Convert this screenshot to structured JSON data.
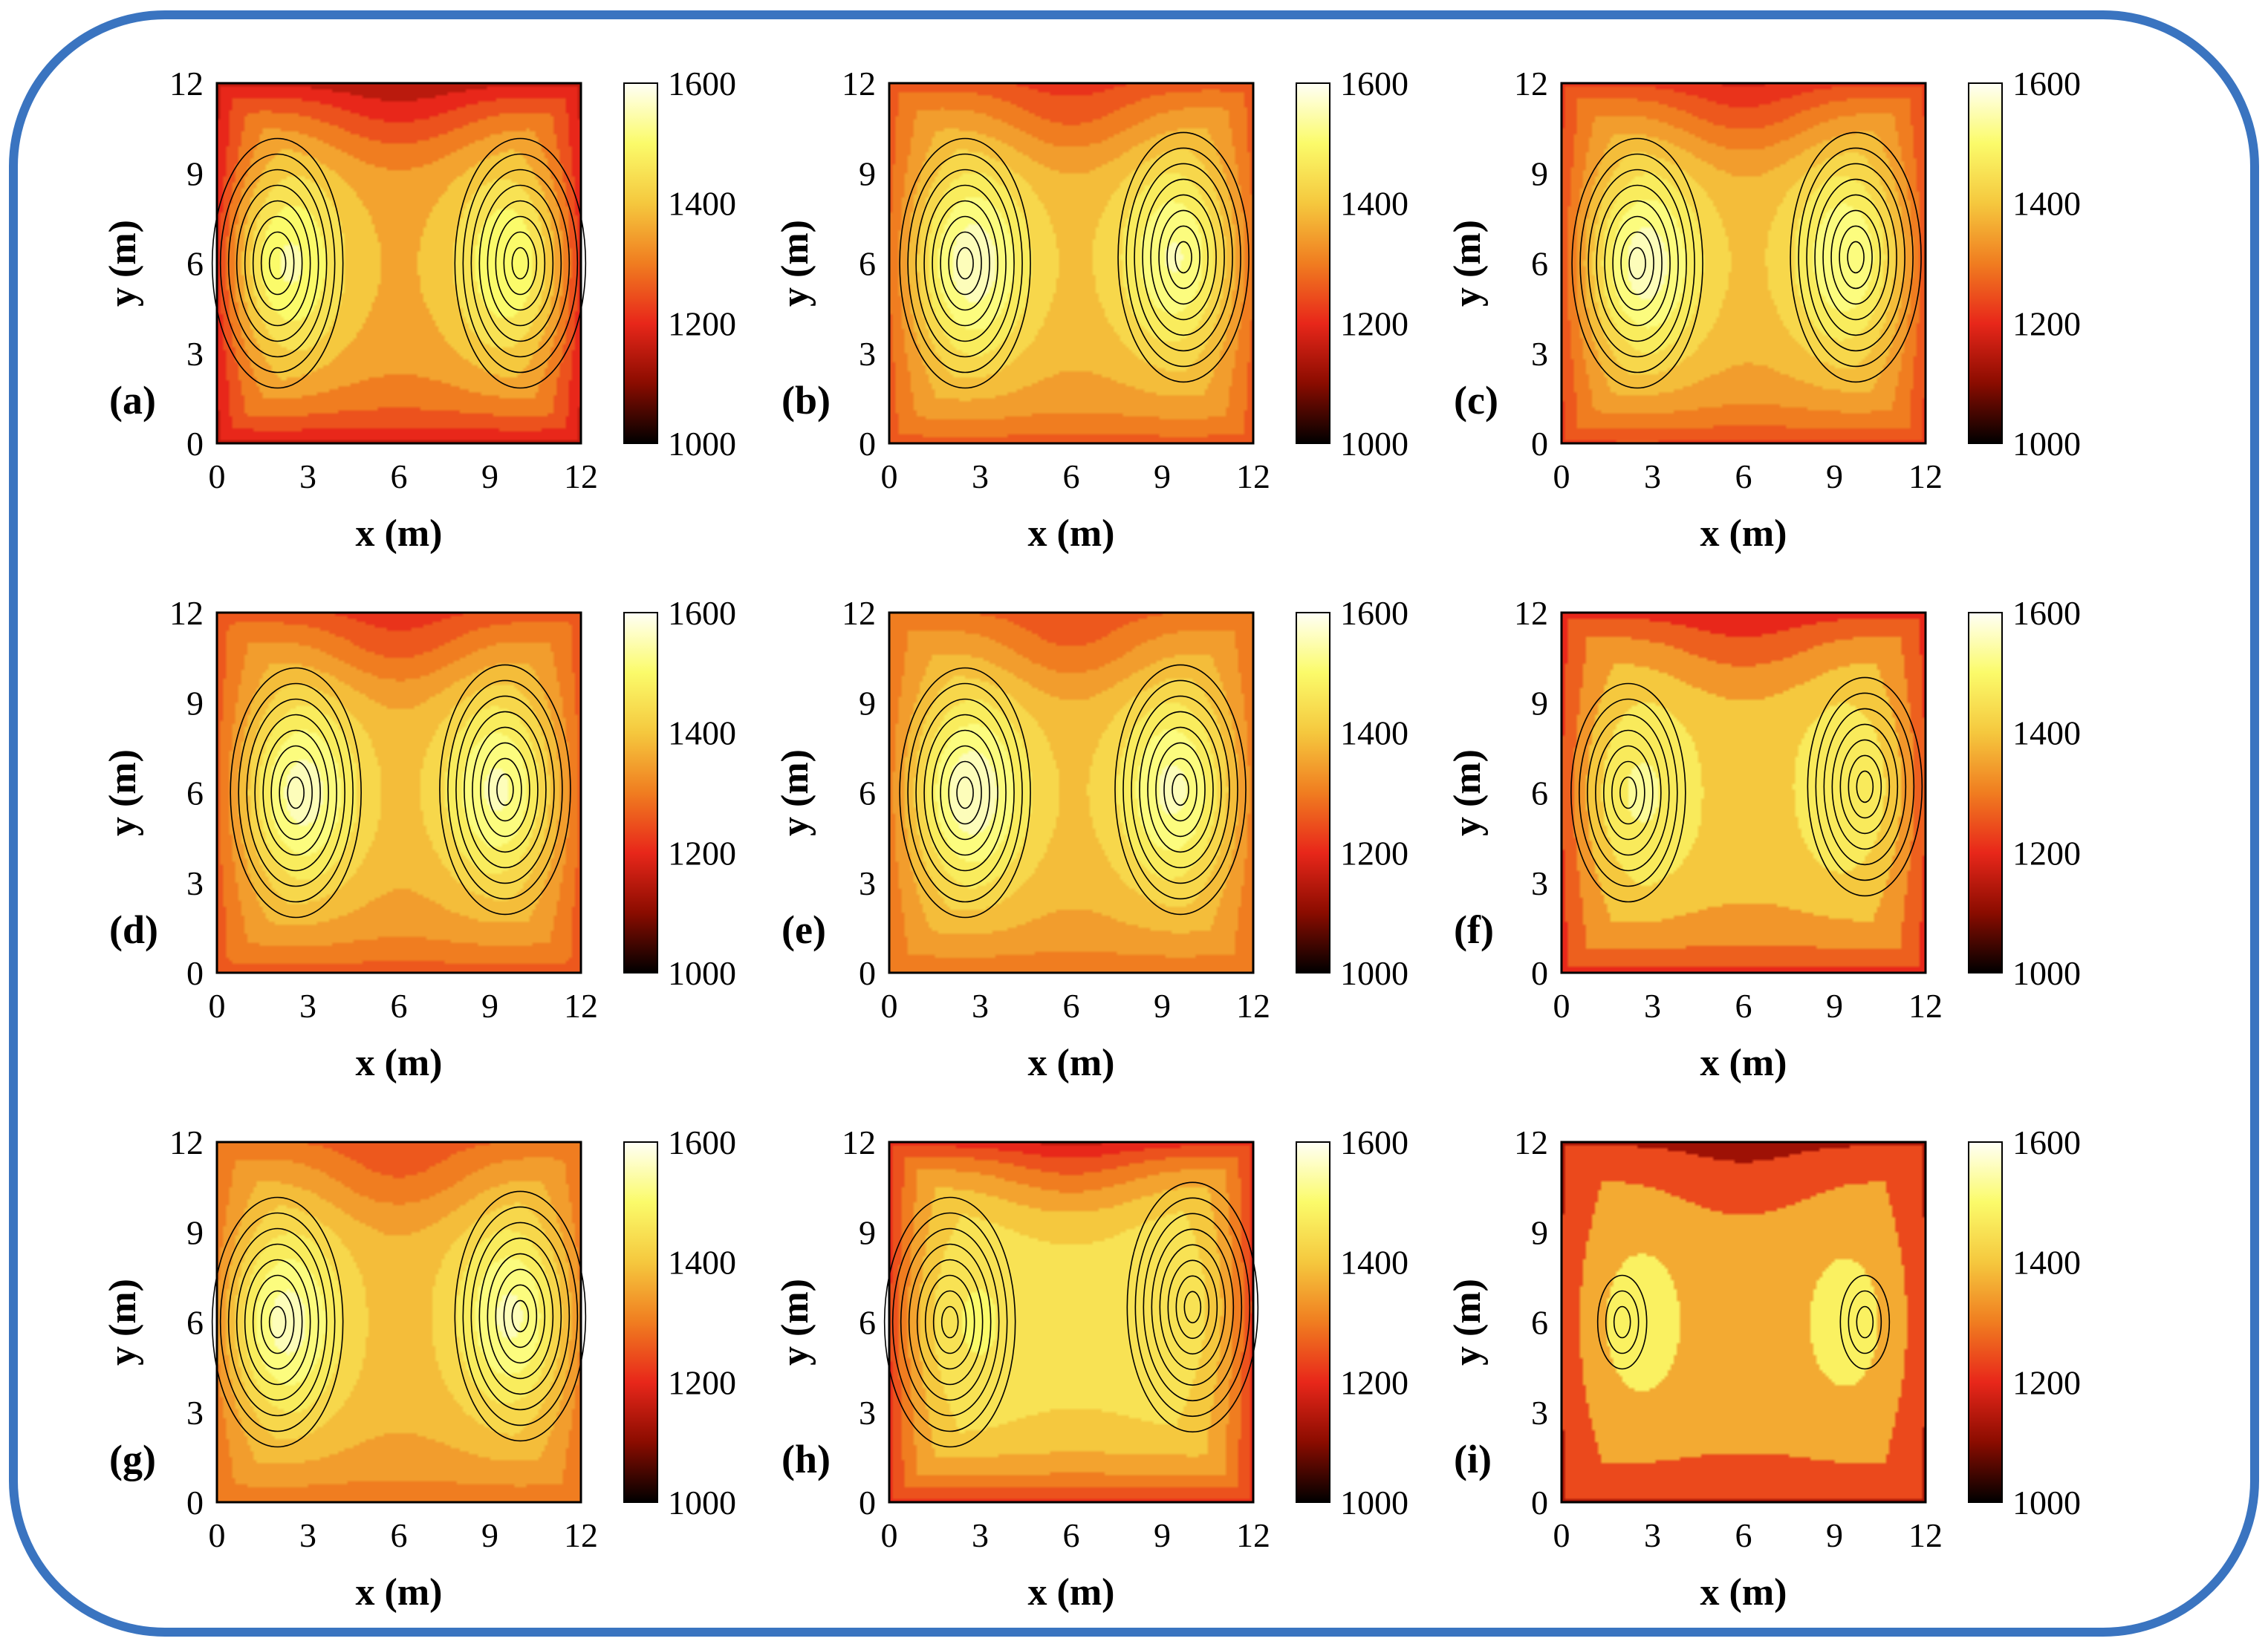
{
  "figure": {
    "frame_color": "#3a74c0",
    "colormap": [
      "#000000",
      "#8b0c00",
      "#e8271a",
      "#f07d20",
      "#f5c83e",
      "#fbfb6a",
      "#fffff6"
    ],
    "contour_line_color": "#000000"
  },
  "chart_data": [
    {
      "panel_label": "(a)",
      "type": "heatmap",
      "xlabel": "x (m)",
      "ylabel": "y (m)",
      "xlim": [
        0,
        12
      ],
      "ylim": [
        0,
        12
      ],
      "xticks": [
        "0",
        "3",
        "6",
        "9",
        "12"
      ],
      "yticks": [
        "0",
        "3",
        "6",
        "9",
        "12"
      ],
      "colorbar": {
        "min": 1000,
        "max": 1600,
        "ticks": [
          "1600",
          "1400",
          "1200",
          "1000"
        ]
      },
      "field": {
        "base": 1360,
        "hotspots": [
          {
            "x": 2,
            "y": 6,
            "peak": 1600
          },
          {
            "x": 10,
            "y": 6,
            "peak": 1590
          }
        ],
        "hot_edge_value": 1000,
        "contour_levels": 12
      }
    },
    {
      "panel_label": "(b)",
      "type": "heatmap",
      "xlabel": "x (m)",
      "ylabel": "y (m)",
      "xlim": [
        0,
        12
      ],
      "ylim": [
        0,
        12
      ],
      "xticks": [
        "0",
        "3",
        "6",
        "9",
        "12"
      ],
      "yticks": [
        "0",
        "3",
        "6",
        "9",
        "12"
      ],
      "colorbar": {
        "min": 1000,
        "max": 1600,
        "ticks": [
          "1600",
          "1400",
          "1200",
          "1000"
        ]
      },
      "field": {
        "base": 1380,
        "hotspots": [
          {
            "x": 2.5,
            "y": 6,
            "peak": 1600
          },
          {
            "x": 9.7,
            "y": 6.2,
            "peak": 1580
          }
        ],
        "hot_edge_value": 1150,
        "contour_levels": 14
      }
    },
    {
      "panel_label": "(c)",
      "type": "heatmap",
      "xlabel": "x (m)",
      "ylabel": "y (m)",
      "xlim": [
        0,
        12
      ],
      "ylim": [
        0,
        12
      ],
      "xticks": [
        "0",
        "3",
        "6",
        "9",
        "12"
      ],
      "yticks": [
        "0",
        "3",
        "6",
        "9",
        "12"
      ],
      "colorbar": {
        "min": 1000,
        "max": 1600,
        "ticks": [
          "1600",
          "1400",
          "1200",
          "1000"
        ]
      },
      "field": {
        "base": 1380,
        "hotspots": [
          {
            "x": 2.5,
            "y": 6,
            "peak": 1600
          },
          {
            "x": 9.7,
            "y": 6.2,
            "peak": 1580
          }
        ],
        "hot_edge_value": 1100,
        "contour_levels": 14
      }
    },
    {
      "panel_label": "(d)",
      "type": "heatmap",
      "xlabel": "x (m)",
      "ylabel": "y (m)",
      "xlim": [
        0,
        12
      ],
      "ylim": [
        0,
        12
      ],
      "xticks": [
        "0",
        "3",
        "6",
        "9",
        "12"
      ],
      "yticks": [
        "0",
        "3",
        "6",
        "9",
        "12"
      ],
      "colorbar": {
        "min": 1000,
        "max": 1600,
        "ticks": [
          "1600",
          "1400",
          "1200",
          "1000"
        ]
      },
      "field": {
        "base": 1370,
        "hotspots": [
          {
            "x": 2.6,
            "y": 6,
            "peak": 1590
          },
          {
            "x": 9.5,
            "y": 6.1,
            "peak": 1580
          }
        ],
        "hot_edge_value": 1150,
        "contour_levels": 14
      }
    },
    {
      "panel_label": "(e)",
      "type": "heatmap",
      "xlabel": "x (m)",
      "ylabel": "y (m)",
      "xlim": [
        0,
        12
      ],
      "ylim": [
        0,
        12
      ],
      "xticks": [
        "0",
        "3",
        "6",
        "9",
        "12"
      ],
      "yticks": [
        "0",
        "3",
        "6",
        "9",
        "12"
      ],
      "colorbar": {
        "min": 1000,
        "max": 1600,
        "ticks": [
          "1600",
          "1400",
          "1200",
          "1000"
        ]
      },
      "field": {
        "base": 1380,
        "hotspots": [
          {
            "x": 2.5,
            "y": 6,
            "peak": 1600
          },
          {
            "x": 9.6,
            "y": 6.1,
            "peak": 1580
          }
        ],
        "hot_edge_value": 1200,
        "contour_levels": 14
      }
    },
    {
      "panel_label": "(f)",
      "type": "heatmap",
      "xlabel": "x (m)",
      "ylabel": "y (m)",
      "xlim": [
        0,
        12
      ],
      "ylim": [
        0,
        12
      ],
      "xticks": [
        "0",
        "3",
        "6",
        "9",
        "12"
      ],
      "yticks": [
        "0",
        "3",
        "6",
        "9",
        "12"
      ],
      "colorbar": {
        "min": 1000,
        "max": 1600,
        "ticks": [
          "1600",
          "1400",
          "1200",
          "1000"
        ]
      },
      "field": {
        "base": 1400,
        "hotspots": [
          {
            "x": 2.2,
            "y": 6,
            "peak": 1560
          },
          {
            "x": 10,
            "y": 6.2,
            "peak": 1550
          }
        ],
        "hot_edge_value": 1050,
        "contour_levels": 9
      }
    },
    {
      "panel_label": "(g)",
      "type": "heatmap",
      "xlabel": "x (m)",
      "ylabel": "y (m)",
      "xlim": [
        0,
        12
      ],
      "ylim": [
        0,
        12
      ],
      "xticks": [
        "0",
        "3",
        "6",
        "9",
        "12"
      ],
      "yticks": [
        "0",
        "3",
        "6",
        "9",
        "12"
      ],
      "colorbar": {
        "min": 1000,
        "max": 1600,
        "ticks": [
          "1600",
          "1400",
          "1200",
          "1000"
        ]
      },
      "field": {
        "base": 1380,
        "hotspots": [
          {
            "x": 2,
            "y": 6,
            "peak": 1600
          },
          {
            "x": 10,
            "y": 6.2,
            "peak": 1590
          }
        ],
        "hot_edge_value": 1200,
        "contour_levels": 14
      }
    },
    {
      "panel_label": "(h)",
      "type": "heatmap",
      "xlabel": "x (m)",
      "ylabel": "y (m)",
      "xlim": [
        0,
        12
      ],
      "ylim": [
        0,
        12
      ],
      "xticks": [
        "0",
        "3",
        "6",
        "9",
        "12"
      ],
      "yticks": [
        "0",
        "3",
        "6",
        "9",
        "12"
      ],
      "colorbar": {
        "min": 1000,
        "max": 1600,
        "ticks": [
          "1600",
          "1400",
          "1200",
          "1000"
        ]
      },
      "field": {
        "base": 1450,
        "hotspots": [
          {
            "x": 2,
            "y": 6,
            "peak": 1530
          },
          {
            "x": 10,
            "y": 6.5,
            "peak": 1520
          }
        ],
        "hot_edge_value": 1000,
        "contour_levels": 12
      }
    },
    {
      "panel_label": "(i)",
      "type": "heatmap",
      "xlabel": "x (m)",
      "ylabel": "y (m)",
      "xlim": [
        0,
        12
      ],
      "ylim": [
        0,
        12
      ],
      "xticks": [
        "0",
        "3",
        "6",
        "9",
        "12"
      ],
      "yticks": [
        "0",
        "3",
        "6",
        "9",
        "12"
      ],
      "colorbar": {
        "min": 1000,
        "max": 1600,
        "ticks": [
          "1600",
          "1400",
          "1200",
          "1000"
        ]
      },
      "field": {
        "base": 1360,
        "hotspots": [
          {
            "x": 2,
            "y": 6,
            "peak": 1530
          },
          {
            "x": 10,
            "y": 6,
            "peak": 1520
          }
        ],
        "hot_edge_value": 1000,
        "contour_levels": 5
      }
    }
  ]
}
